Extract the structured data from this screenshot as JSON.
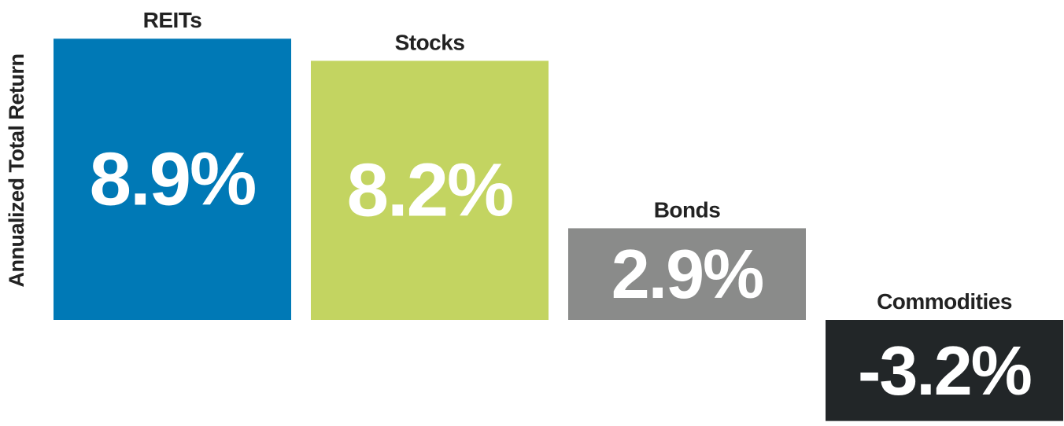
{
  "chart_data": {
    "type": "bar",
    "ylabel": "Annualized Total Return",
    "categories": [
      "REITs",
      "Stocks",
      "Bonds",
      "Commodities"
    ],
    "values": [
      8.9,
      8.2,
      2.9,
      -3.2
    ],
    "value_labels": [
      "8.9%",
      "8.2%",
      "2.9%",
      "-3.2%"
    ],
    "colors": [
      "#0079b6",
      "#c3d461",
      "#8a8b8a",
      "#222628"
    ],
    "grid": false,
    "legend": "none"
  }
}
